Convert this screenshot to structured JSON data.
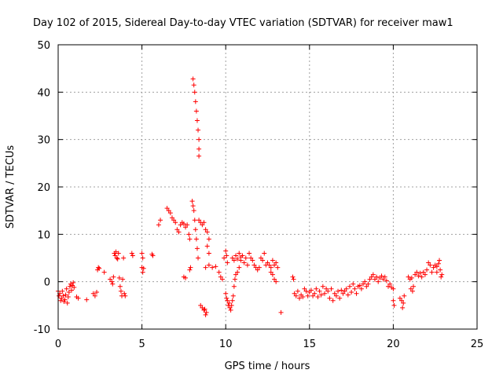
{
  "chart_data": {
    "type": "scatter",
    "title": "Day 102 of 2015, Sidereal Day-to-day VTEC variation (SDTVAR) for receiver maw1",
    "xlabel": "GPS time / hours",
    "ylabel": "SDTVAR / TECUs",
    "xlim": [
      0,
      25
    ],
    "ylim": [
      -10,
      50
    ],
    "xticks": [
      0,
      5,
      10,
      15,
      20,
      25
    ],
    "yticks": [
      -10,
      0,
      10,
      20,
      30,
      40,
      50
    ],
    "xtick_labels": [
      "0",
      "5",
      "10",
      "15",
      "20",
      "25"
    ],
    "ytick_labels": [
      "-10",
      "0",
      "10",
      "20",
      "30",
      "40",
      "50"
    ],
    "grid": true,
    "marker": "+",
    "color": "#ff0000",
    "series": [
      {
        "name": "SDTVAR",
        "points": [
          [
            0.0,
            -2.0
          ],
          [
            0.05,
            -3.0
          ],
          [
            0.1,
            -2.5
          ],
          [
            0.15,
            -4.0
          ],
          [
            0.2,
            -3.5
          ],
          [
            0.25,
            -2.0
          ],
          [
            0.3,
            -3.0
          ],
          [
            0.35,
            -4.2
          ],
          [
            0.4,
            -3.8
          ],
          [
            0.45,
            -2.8
          ],
          [
            0.5,
            -1.5
          ],
          [
            0.55,
            -4.5
          ],
          [
            0.6,
            -3.2
          ],
          [
            0.65,
            -2.2
          ],
          [
            0.7,
            -1.0
          ],
          [
            0.75,
            -0.5
          ],
          [
            0.8,
            -1.8
          ],
          [
            0.85,
            -0.8
          ],
          [
            0.9,
            -0.2
          ],
          [
            0.95,
            -1.2
          ],
          [
            1.1,
            -3.2
          ],
          [
            1.2,
            -3.5
          ],
          [
            1.7,
            -3.8
          ],
          [
            2.1,
            -2.5
          ],
          [
            2.2,
            -3.0
          ],
          [
            2.3,
            -2.2
          ],
          [
            2.35,
            2.5
          ],
          [
            2.4,
            3.0
          ],
          [
            2.45,
            2.8
          ],
          [
            2.75,
            2.0
          ],
          [
            3.1,
            0.5
          ],
          [
            3.2,
            0.0
          ],
          [
            3.25,
            -0.5
          ],
          [
            3.3,
            1.0
          ],
          [
            3.35,
            6.0
          ],
          [
            3.4,
            5.5
          ],
          [
            3.45,
            6.3
          ],
          [
            3.5,
            5.0
          ],
          [
            3.55,
            4.8
          ],
          [
            3.6,
            6.0
          ],
          [
            3.65,
            0.8
          ],
          [
            3.7,
            -1.0
          ],
          [
            3.75,
            -2.0
          ],
          [
            3.8,
            -3.0
          ],
          [
            3.85,
            0.5
          ],
          [
            3.9,
            5.0
          ],
          [
            3.95,
            -2.5
          ],
          [
            4.0,
            -3.0
          ],
          [
            4.4,
            6.0
          ],
          [
            4.45,
            5.5
          ],
          [
            5.0,
            6.0
          ],
          [
            5.05,
            5.0
          ],
          [
            5.0,
            3.0
          ],
          [
            5.05,
            2.0
          ],
          [
            5.1,
            2.8
          ],
          [
            5.6,
            5.8
          ],
          [
            5.65,
            5.5
          ],
          [
            6.0,
            12.0
          ],
          [
            6.1,
            13.0
          ],
          [
            6.5,
            15.5
          ],
          [
            6.6,
            15.0
          ],
          [
            6.7,
            14.5
          ],
          [
            6.8,
            13.5
          ],
          [
            6.9,
            13.0
          ],
          [
            7.0,
            12.5
          ],
          [
            7.1,
            11.0
          ],
          [
            7.2,
            10.5
          ],
          [
            7.3,
            12.0
          ],
          [
            7.4,
            12.5
          ],
          [
            7.5,
            12.2
          ],
          [
            7.6,
            11.5
          ],
          [
            7.7,
            12.0
          ],
          [
            7.8,
            10.0
          ],
          [
            7.85,
            9.0
          ],
          [
            7.5,
            1.0
          ],
          [
            7.6,
            0.8
          ],
          [
            7.85,
            2.5
          ],
          [
            7.9,
            3.0
          ],
          [
            8.0,
            17.0
          ],
          [
            8.05,
            16.0
          ],
          [
            8.1,
            15.0
          ],
          [
            8.15,
            13.0
          ],
          [
            8.2,
            11.0
          ],
          [
            8.25,
            9.0
          ],
          [
            8.3,
            7.0
          ],
          [
            8.35,
            5.0
          ],
          [
            8.05,
            42.8
          ],
          [
            8.1,
            41.5
          ],
          [
            8.15,
            40.0
          ],
          [
            8.2,
            38.0
          ],
          [
            8.25,
            36.0
          ],
          [
            8.3,
            34.0
          ],
          [
            8.35,
            32.0
          ],
          [
            8.4,
            30.0
          ],
          [
            8.4,
            28.0
          ],
          [
            8.4,
            26.5
          ],
          [
            8.4,
            13.0
          ],
          [
            8.5,
            12.5
          ],
          [
            8.6,
            12.0
          ],
          [
            8.7,
            12.5
          ],
          [
            8.8,
            11.0
          ],
          [
            8.9,
            10.5
          ],
          [
            9.0,
            9.0
          ],
          [
            8.9,
            7.5
          ],
          [
            9.0,
            6.0
          ],
          [
            8.5,
            -5.0
          ],
          [
            8.6,
            -5.5
          ],
          [
            8.7,
            -6.0
          ],
          [
            8.75,
            -5.8
          ],
          [
            8.8,
            -7.0
          ],
          [
            8.85,
            -6.5
          ],
          [
            8.8,
            3.0
          ],
          [
            9.0,
            3.5
          ],
          [
            9.2,
            3.0
          ],
          [
            9.4,
            3.2
          ],
          [
            9.6,
            2.0
          ],
          [
            9.7,
            1.0
          ],
          [
            9.8,
            0.5
          ],
          [
            9.9,
            5.0
          ],
          [
            10.0,
            6.5
          ],
          [
            10.05,
            5.5
          ],
          [
            10.1,
            4.0
          ],
          [
            10.0,
            -2.5
          ],
          [
            10.05,
            -3.5
          ],
          [
            10.1,
            -4.0
          ],
          [
            10.15,
            -5.0
          ],
          [
            10.2,
            -4.5
          ],
          [
            10.25,
            -5.5
          ],
          [
            10.3,
            -6.0
          ],
          [
            10.35,
            -5.0
          ],
          [
            10.4,
            -4.0
          ],
          [
            10.45,
            -3.0
          ],
          [
            10.5,
            -1.0
          ],
          [
            10.55,
            0.5
          ],
          [
            10.6,
            1.5
          ],
          [
            10.7,
            2.0
          ],
          [
            10.8,
            3.0
          ],
          [
            10.9,
            4.5
          ],
          [
            11.0,
            5.5
          ],
          [
            11.1,
            4.0
          ],
          [
            11.2,
            5.0
          ],
          [
            11.3,
            3.5
          ],
          [
            10.4,
            5.0
          ],
          [
            10.5,
            4.5
          ],
          [
            10.6,
            5.5
          ],
          [
            10.7,
            4.8
          ],
          [
            10.8,
            6.0
          ],
          [
            10.9,
            5.2
          ],
          [
            11.4,
            6.0
          ],
          [
            11.5,
            5.0
          ],
          [
            11.6,
            4.5
          ],
          [
            11.7,
            3.5
          ],
          [
            11.8,
            3.0
          ],
          [
            11.9,
            2.5
          ],
          [
            12.0,
            3.0
          ],
          [
            12.1,
            5.0
          ],
          [
            12.2,
            4.5
          ],
          [
            12.3,
            6.0
          ],
          [
            12.4,
            3.5
          ],
          [
            12.5,
            4.0
          ],
          [
            12.6,
            3.5
          ],
          [
            12.7,
            3.0
          ],
          [
            12.8,
            4.5
          ],
          [
            12.9,
            3.5
          ],
          [
            13.0,
            4.0
          ],
          [
            13.1,
            3.0
          ],
          [
            12.8,
            1.5
          ],
          [
            12.9,
            0.5
          ],
          [
            13.0,
            0.0
          ],
          [
            12.7,
            2.0
          ],
          [
            13.3,
            -6.5
          ],
          [
            14.0,
            1.0
          ],
          [
            14.05,
            0.5
          ],
          [
            14.1,
            -2.5
          ],
          [
            14.2,
            -3.0
          ],
          [
            14.3,
            -2.0
          ],
          [
            14.4,
            -3.5
          ],
          [
            14.5,
            -2.8
          ],
          [
            14.6,
            -3.2
          ],
          [
            14.7,
            -1.5
          ],
          [
            14.8,
            -2.0
          ],
          [
            14.9,
            -3.0
          ],
          [
            15.0,
            -2.2
          ],
          [
            15.1,
            -1.8
          ],
          [
            15.2,
            -3.0
          ],
          [
            15.3,
            -2.5
          ],
          [
            15.4,
            -1.5
          ],
          [
            15.5,
            -3.2
          ],
          [
            15.6,
            -2.0
          ],
          [
            15.7,
            -2.8
          ],
          [
            15.8,
            -1.0
          ],
          [
            15.9,
            -2.5
          ],
          [
            16.0,
            -1.5
          ],
          [
            16.1,
            -2.0
          ],
          [
            16.2,
            -3.5
          ],
          [
            16.3,
            -1.5
          ],
          [
            16.4,
            -4.0
          ],
          [
            16.5,
            -2.5
          ],
          [
            16.6,
            -3.0
          ],
          [
            16.7,
            -2.0
          ],
          [
            16.8,
            -3.5
          ],
          [
            16.9,
            -1.8
          ],
          [
            17.0,
            -2.5
          ],
          [
            17.1,
            -2.0
          ],
          [
            17.2,
            -1.5
          ],
          [
            17.3,
            -2.8
          ],
          [
            17.4,
            -1.0
          ],
          [
            17.5,
            -2.2
          ],
          [
            17.6,
            -0.5
          ],
          [
            17.7,
            -1.5
          ],
          [
            17.8,
            -2.5
          ],
          [
            17.9,
            -1.0
          ],
          [
            18.0,
            -0.8
          ],
          [
            18.1,
            -1.5
          ],
          [
            18.2,
            -0.5
          ],
          [
            18.3,
            0.0
          ],
          [
            18.4,
            -1.0
          ],
          [
            18.5,
            -0.5
          ],
          [
            18.6,
            0.5
          ],
          [
            18.7,
            1.0
          ],
          [
            18.8,
            1.5
          ],
          [
            18.9,
            0.5
          ],
          [
            19.0,
            1.0
          ],
          [
            19.1,
            0.0
          ],
          [
            19.2,
            0.8
          ],
          [
            19.3,
            1.2
          ],
          [
            19.4,
            0.5
          ],
          [
            19.5,
            1.0
          ],
          [
            19.6,
            0.2
          ],
          [
            19.7,
            -1.0
          ],
          [
            19.8,
            -0.5
          ],
          [
            19.9,
            -1.2
          ],
          [
            20.0,
            -1.5
          ],
          [
            20.0,
            -4.0
          ],
          [
            20.05,
            -5.0
          ],
          [
            20.4,
            -3.5
          ],
          [
            20.5,
            -4.0
          ],
          [
            20.6,
            -4.5
          ],
          [
            20.55,
            -5.5
          ],
          [
            20.65,
            -3.0
          ],
          [
            20.9,
            1.0
          ],
          [
            21.0,
            0.5
          ],
          [
            21.1,
            0.8
          ],
          [
            21.05,
            -1.5
          ],
          [
            21.15,
            -2.0
          ],
          [
            21.2,
            -1.0
          ],
          [
            21.3,
            1.5
          ],
          [
            21.4,
            2.0
          ],
          [
            21.5,
            1.2
          ],
          [
            21.6,
            1.8
          ],
          [
            21.7,
            1.0
          ],
          [
            21.8,
            2.0
          ],
          [
            21.9,
            1.5
          ],
          [
            22.0,
            2.5
          ],
          [
            22.1,
            4.0
          ],
          [
            22.2,
            3.5
          ],
          [
            22.3,
            2.0
          ],
          [
            22.4,
            3.0
          ],
          [
            22.5,
            3.5
          ],
          [
            22.6,
            2.0
          ],
          [
            22.7,
            3.8
          ],
          [
            22.8,
            2.5
          ],
          [
            22.9,
            1.5
          ],
          [
            22.85,
            1.0
          ],
          [
            22.75,
            4.5
          ],
          [
            22.6,
            3.2
          ]
        ]
      }
    ]
  },
  "colors": {
    "marker": "#ff0000",
    "grid": "#a0a0a0",
    "axis": "#000000"
  }
}
